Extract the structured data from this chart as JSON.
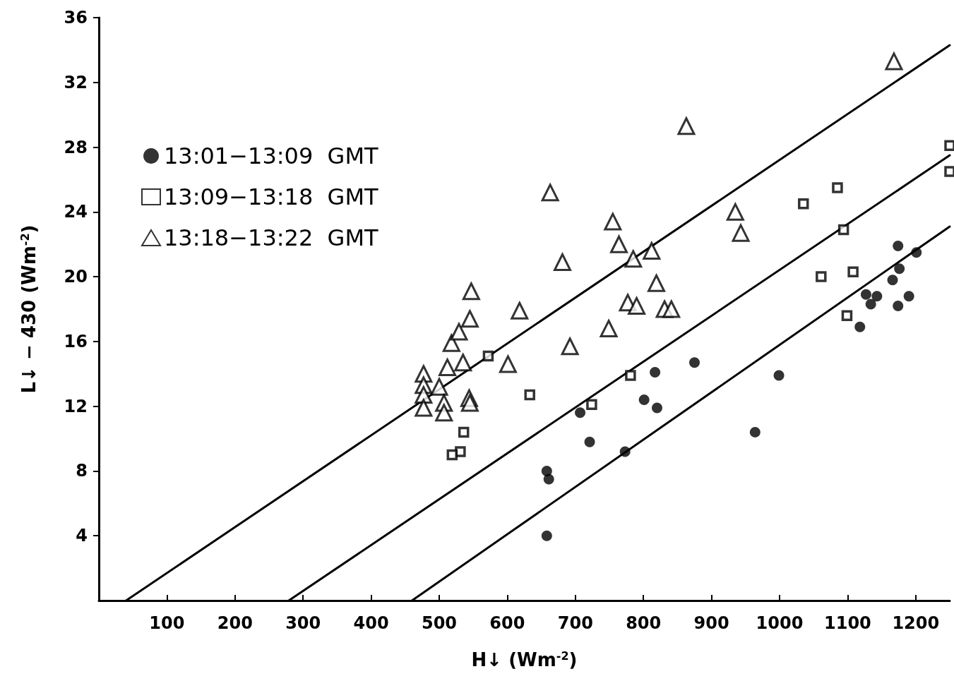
{
  "chart_data": {
    "type": "scatter",
    "xlabel": "H↓ (Wm$^{-2}$)",
    "ylabel": "L↓ − 430 (Wm$^{-2}$)",
    "xlim": [
      0,
      1250
    ],
    "ylim": [
      0,
      36
    ],
    "xticks": [
      100,
      200,
      300,
      400,
      500,
      600,
      700,
      800,
      900,
      1000,
      1100,
      1200
    ],
    "yticks": [
      4,
      8,
      12,
      16,
      20,
      24,
      28,
      32,
      36
    ],
    "grid": false,
    "legend": "top left",
    "series": [
      {
        "name": "13:01−13:09  GMT",
        "color": "#000000",
        "marker": "circle",
        "x": [
          658,
          661,
          658,
          707,
          721,
          773,
          801,
          817,
          820,
          875,
          999,
          964,
          1118,
          1127,
          1134,
          1143,
          1166,
          1174,
          1174,
          1176,
          1190,
          1201
        ],
        "values": [
          8.0,
          7.5,
          4.0,
          11.6,
          9.8,
          9.2,
          12.4,
          14.1,
          11.9,
          14.7,
          13.9,
          10.4,
          16.9,
          18.9,
          18.3,
          18.8,
          19.8,
          18.2,
          21.9,
          20.5,
          18.8,
          21.5
        ]
      },
      {
        "name": "13:09−13:18  GMT",
        "color": "#000000",
        "marker": "square",
        "x": [
          572,
          633,
          536,
          531,
          519,
          724,
          781,
          1035,
          1085,
          1094,
          1061,
          1108,
          1099,
          1250,
          1250
        ],
        "values": [
          15.1,
          12.7,
          10.4,
          9.2,
          9.0,
          12.1,
          13.9,
          24.5,
          25.5,
          22.9,
          20.0,
          20.3,
          17.6,
          28.1,
          26.5
        ]
      },
      {
        "name": "13:18−13:22  GMT",
        "color": "#000000",
        "marker": "triangle",
        "x": [
          1168,
          863,
          663,
          755,
          764,
          812,
          785,
          681,
          935,
          943,
          819,
          547,
          618,
          545,
          518,
          529,
          512,
          535,
          601,
          692,
          749,
          777,
          790,
          831,
          841,
          477,
          477,
          477,
          477,
          500,
          507,
          507,
          544,
          545
        ],
        "values": [
          33.3,
          29.3,
          25.2,
          23.4,
          22.0,
          21.6,
          21.1,
          20.9,
          24.0,
          22.7,
          19.6,
          19.1,
          17.9,
          17.4,
          15.9,
          16.6,
          14.4,
          14.7,
          14.6,
          15.7,
          16.8,
          18.4,
          18.2,
          18.0,
          18.0,
          14.0,
          13.3,
          12.7,
          11.9,
          13.2,
          12.2,
          11.6,
          12.5,
          12.2
        ]
      },
      {
        "type": "line",
        "color": "#000000",
        "marker": "none",
        "x": [
          40,
          1250
        ],
        "values": [
          0,
          34.3
        ]
      },
      {
        "type": "line",
        "color": "#000000",
        "marker": "none",
        "x": [
          279,
          1250
        ],
        "values": [
          0,
          27.5
        ]
      },
      {
        "type": "line",
        "color": "#000000",
        "marker": "none",
        "x": [
          460,
          1250
        ],
        "values": [
          0,
          23.1
        ]
      }
    ]
  }
}
